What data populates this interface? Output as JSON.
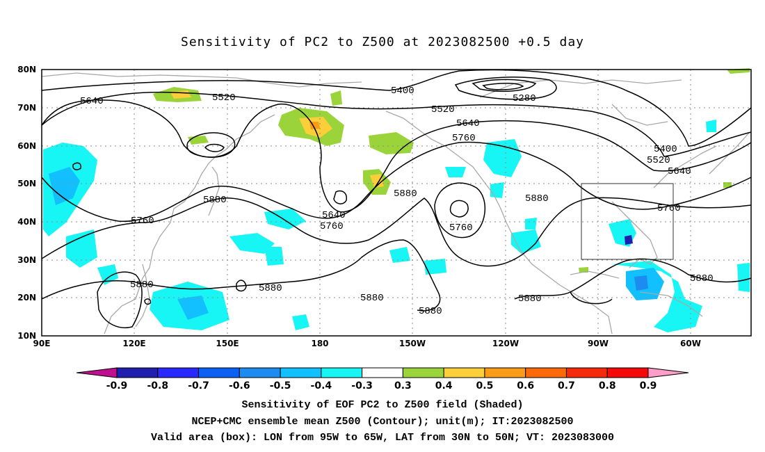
{
  "title": "Sensitivity of PC2 to Z500 at 2023082500 +0.5 day",
  "map": {
    "lat_ticks": [
      "80N",
      "70N",
      "60N",
      "50N",
      "40N",
      "30N",
      "20N",
      "10N"
    ],
    "lon_ticks": [
      "90E",
      "120E",
      "150E",
      "180",
      "150W",
      "120W",
      "90W",
      "60W"
    ],
    "extent": {
      "lon_west": "90E",
      "lon_east": "40W",
      "lat_south": "10N",
      "lat_north": "80N"
    },
    "contours": [
      {
        "value": "5280",
        "label": "5280"
      },
      {
        "value": "5400",
        "label": "5400"
      },
      {
        "value": "5520",
        "label": "5520"
      },
      {
        "value": "5640",
        "label": "5640"
      },
      {
        "value": "5760",
        "label": "5760"
      },
      {
        "value": "5880",
        "label": "5880"
      }
    ],
    "valid_box": {
      "lon_west": "95W",
      "lon_east": "65W",
      "lat_south": "30N",
      "lat_north": "50N"
    }
  },
  "colorbar": {
    "labels": [
      "-0.9",
      "-0.8",
      "-0.7",
      "-0.6",
      "-0.5",
      "-0.4",
      "-0.3",
      "0.3",
      "0.4",
      "0.5",
      "0.6",
      "0.7",
      "0.8",
      "0.9"
    ],
    "colors": [
      "#c0108f",
      "#1f1fad",
      "#2828ff",
      "#0a5ff5",
      "#1c8cf0",
      "#12c0ff",
      "#18f5f5",
      "#ffffff",
      "#9bd43a",
      "#fccf3a",
      "#fa9c18",
      "#fa6a0a",
      "#f52a0a",
      "#f50a0a",
      "#ff9ec8"
    ]
  },
  "footer": {
    "line1": "Sensitivity of EOF PC2 to Z500 field (Shaded)",
    "line2": "NCEP+CMC ensemble mean Z500 (Contour); unit(m); IT:2023082500",
    "line3": "Valid area (box): LON from 95W to 65W, LAT from 30N to 50N; VT: 2023083000"
  }
}
